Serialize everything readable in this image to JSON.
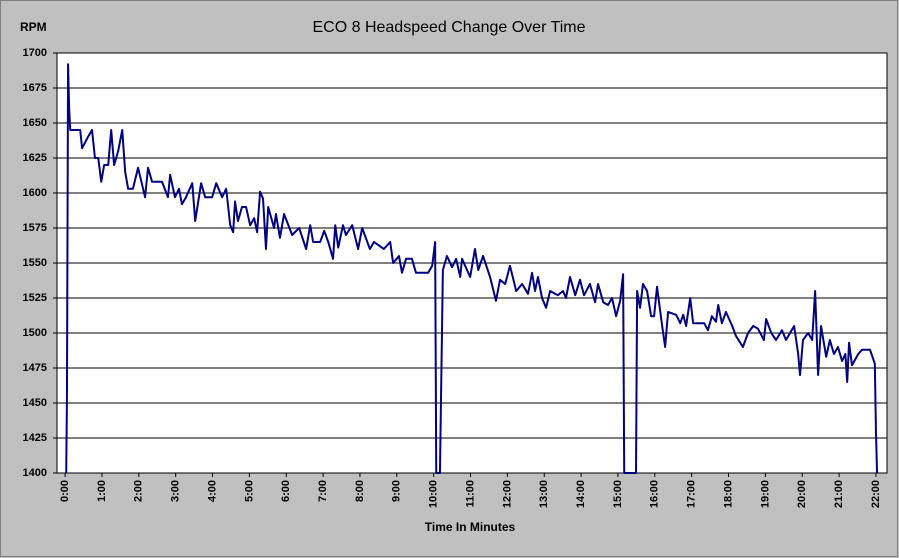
{
  "chart_data": {
    "type": "line",
    "title": "ECO 8 Headspeed Change Over Time",
    "ylabel": "RPM",
    "xlabel": "Time In Minutes",
    "xlim": [
      -0.22,
      22.3
    ],
    "ylim": [
      1400,
      1700
    ],
    "yticks": [
      1400,
      1425,
      1450,
      1475,
      1500,
      1525,
      1550,
      1575,
      1600,
      1625,
      1650,
      1675,
      1700
    ],
    "xticks": [
      {
        "value": 0,
        "label": "0:00"
      },
      {
        "value": 1,
        "label": "1:00"
      },
      {
        "value": 2,
        "label": "2:00"
      },
      {
        "value": 3,
        "label": "3:00"
      },
      {
        "value": 4,
        "label": "4:00"
      },
      {
        "value": 5,
        "label": "5:00"
      },
      {
        "value": 6,
        "label": "6:00"
      },
      {
        "value": 7,
        "label": "7:00"
      },
      {
        "value": 8,
        "label": "8:00"
      },
      {
        "value": 9,
        "label": "9:00"
      },
      {
        "value": 10,
        "label": "10:00"
      },
      {
        "value": 11,
        "label": "11:00"
      },
      {
        "value": 12,
        "label": "12:00"
      },
      {
        "value": 13,
        "label": "13:00"
      },
      {
        "value": 14,
        "label": "14:00"
      },
      {
        "value": 15,
        "label": "15:00"
      },
      {
        "value": 16,
        "label": "16:00"
      },
      {
        "value": 17,
        "label": "17:00"
      },
      {
        "value": 18,
        "label": "18:00"
      },
      {
        "value": 19,
        "label": "19:00"
      },
      {
        "value": 20,
        "label": "20:00"
      },
      {
        "value": 21,
        "label": "21:00"
      },
      {
        "value": 22,
        "label": "22:00"
      }
    ],
    "grid": true,
    "color": "#000080",
    "x": [
      0.03,
      0.05,
      0.08,
      0.11,
      0.14,
      0.41,
      0.46,
      0.62,
      0.73,
      0.81,
      0.9,
      0.98,
      1.06,
      1.17,
      1.25,
      1.33,
      1.44,
      1.55,
      1.63,
      1.71,
      1.84,
      1.98,
      2.17,
      2.25,
      2.36,
      2.63,
      2.79,
      2.85,
      2.98,
      3.09,
      3.17,
      3.28,
      3.45,
      3.53,
      3.69,
      3.8,
      3.99,
      4.1,
      4.26,
      4.37,
      4.48,
      4.56,
      4.61,
      4.69,
      4.8,
      4.91,
      5.02,
      5.13,
      5.21,
      5.29,
      5.37,
      5.45,
      5.51,
      5.67,
      5.72,
      5.83,
      5.94,
      6.16,
      6.35,
      6.54,
      6.65,
      6.73,
      6.92,
      7.03,
      7.14,
      7.27,
      7.33,
      7.41,
      7.54,
      7.62,
      7.79,
      7.95,
      8.06,
      8.27,
      8.38,
      8.65,
      8.82,
      8.9,
      9.06,
      9.14,
      9.25,
      9.41,
      9.52,
      9.85,
      9.96,
      10.04,
      10.07,
      10.17,
      10.25,
      10.36,
      10.5,
      10.61,
      10.72,
      10.77,
      10.99,
      11.12,
      11.21,
      11.34,
      11.53,
      11.69,
      11.8,
      11.94,
      12.07,
      12.24,
      12.4,
      12.56,
      12.67,
      12.75,
      12.83,
      12.94,
      13.05,
      13.16,
      13.37,
      13.51,
      13.59,
      13.7,
      13.84,
      13.97,
      14.08,
      14.24,
      14.38,
      14.46,
      14.6,
      14.73,
      14.84,
      14.95,
      15.06,
      15.14,
      15.17,
      15.49,
      15.52,
      15.6,
      15.68,
      15.79,
      15.9,
      15.98,
      16.06,
      16.2,
      16.28,
      16.36,
      16.58,
      16.69,
      16.77,
      16.85,
      16.96,
      17.04,
      17.34,
      17.44,
      17.55,
      17.66,
      17.72,
      17.82,
      17.93,
      18.1,
      18.2,
      18.39,
      18.53,
      18.67,
      18.8,
      18.96,
      19.02,
      19.16,
      19.29,
      19.45,
      19.56,
      19.67,
      19.78,
      19.89,
      19.94,
      20.02,
      20.16,
      20.27,
      20.35,
      20.43,
      20.51,
      20.65,
      20.75,
      20.86,
      20.97,
      21.08,
      21.17,
      21.22,
      21.27,
      21.35,
      21.52,
      21.62,
      21.84,
      21.97,
      22.0,
      22.03
    ],
    "values": [
      1400,
      1455,
      1692,
      1660,
      1645,
      1645,
      1632,
      1640,
      1645,
      1625,
      1625,
      1608,
      1620,
      1620,
      1645,
      1620,
      1630,
      1645,
      1615,
      1603,
      1603,
      1618,
      1597,
      1618,
      1608,
      1608,
      1597,
      1613,
      1597,
      1603,
      1592,
      1597,
      1607,
      1580,
      1607,
      1597,
      1597,
      1607,
      1597,
      1603,
      1577,
      1572,
      1594,
      1580,
      1590,
      1590,
      1577,
      1582,
      1572,
      1601,
      1596,
      1560,
      1590,
      1575,
      1585,
      1568,
      1585,
      1570,
      1575,
      1560,
      1577,
      1565,
      1565,
      1573,
      1565,
      1553,
      1577,
      1561,
      1577,
      1570,
      1577,
      1560,
      1575,
      1560,
      1565,
      1560,
      1565,
      1550,
      1555,
      1543,
      1553,
      1553,
      1543,
      1543,
      1548,
      1565,
      1400,
      1400,
      1545,
      1555,
      1547,
      1553,
      1540,
      1553,
      1540,
      1560,
      1545,
      1555,
      1540,
      1523,
      1538,
      1535,
      1548,
      1530,
      1535,
      1528,
      1543,
      1530,
      1540,
      1525,
      1518,
      1530,
      1527,
      1530,
      1525,
      1540,
      1527,
      1538,
      1527,
      1535,
      1522,
      1535,
      1522,
      1520,
      1525,
      1512,
      1523,
      1542,
      1400,
      1400,
      1530,
      1518,
      1535,
      1530,
      1512,
      1512,
      1533,
      1505,
      1490,
      1515,
      1513,
      1507,
      1513,
      1505,
      1525,
      1507,
      1507,
      1502,
      1512,
      1508,
      1520,
      1507,
      1515,
      1505,
      1498,
      1490,
      1500,
      1505,
      1503,
      1495,
      1510,
      1500,
      1495,
      1502,
      1495,
      1500,
      1505,
      1485,
      1470,
      1495,
      1500,
      1495,
      1530,
      1470,
      1505,
      1483,
      1495,
      1485,
      1490,
      1480,
      1485,
      1465,
      1493,
      1477,
      1485,
      1488,
      1488,
      1478,
      1430,
      1400
    ]
  }
}
